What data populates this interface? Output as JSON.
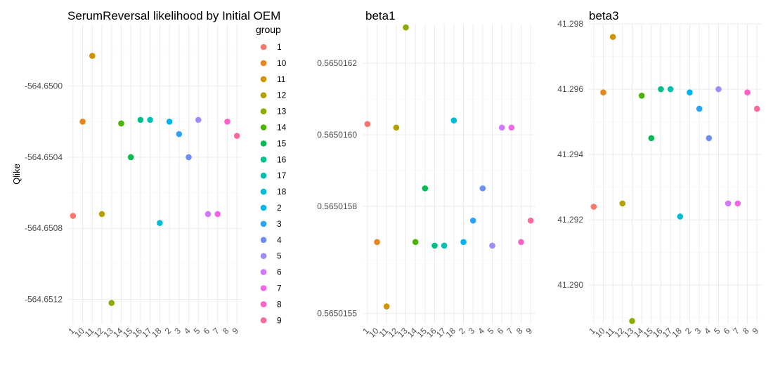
{
  "chart_data": [
    {
      "type": "scatter",
      "title": "SerumReversal likelihood by Initial OEM",
      "xlabel": "",
      "ylabel": "Qlike",
      "ylim": [
        -564.65134,
        -564.64965
      ],
      "yticks": [
        "-564.6500",
        "-564.6504",
        "-564.6508",
        "-564.6512"
      ],
      "ytick_values": [
        -564.65,
        -564.6504,
        -564.6508,
        -564.6512
      ],
      "categories": [
        "1",
        "10",
        "11",
        "12",
        "13",
        "14",
        "15",
        "16",
        "17",
        "18",
        "2",
        "3",
        "4",
        "5",
        "6",
        "7",
        "8",
        "9"
      ],
      "values": [
        -564.65073,
        -564.6502,
        -564.64983,
        -564.65072,
        -564.65122,
        -564.65021,
        -564.6504,
        -564.65019,
        -564.65019,
        -564.65077,
        -564.6502,
        -564.65027,
        -564.6504,
        -564.65019,
        -564.65072,
        -564.65072,
        -564.6502,
        -564.65028
      ],
      "grid": true
    },
    {
      "type": "scatter",
      "title": "beta1",
      "xlabel": "",
      "ylabel": "",
      "ylim": [
        0.56501547,
        0.56501631
      ],
      "yticks": [
        "0.5650162",
        "0.5650160",
        "0.5650158",
        "0.5650155"
      ],
      "ytick_values": [
        0.5650162,
        0.565016,
        0.5650158,
        0.5650155
      ],
      "categories": [
        "1",
        "10",
        "11",
        "12",
        "13",
        "14",
        "15",
        "16",
        "17",
        "18",
        "2",
        "3",
        "4",
        "5",
        "6",
        "7",
        "8",
        "9"
      ],
      "values": [
        0.56501603,
        0.5650157,
        0.56501552,
        0.56501602,
        0.5650163,
        0.5650157,
        0.56501585,
        0.56501569,
        0.56501569,
        0.56501604,
        0.5650157,
        0.56501576,
        0.56501585,
        0.56501569,
        0.56501602,
        0.56501602,
        0.5650157,
        0.56501576
      ],
      "grid": true
    },
    {
      "type": "scatter",
      "title": "beta3",
      "xlabel": "",
      "ylabel": "",
      "ylim": [
        41.2888,
        41.298
      ],
      "yticks": [
        "41.298",
        "41.296",
        "41.294",
        "41.292",
        "41.290"
      ],
      "ytick_values": [
        41.298,
        41.296,
        41.294,
        41.292,
        41.29
      ],
      "categories": [
        "1",
        "10",
        "11",
        "12",
        "13",
        "14",
        "15",
        "16",
        "17",
        "18",
        "2",
        "3",
        "4",
        "5",
        "6",
        "7",
        "8",
        "9"
      ],
      "values": [
        41.2924,
        41.2959,
        41.2976,
        41.2925,
        41.2889,
        41.2958,
        41.2945,
        41.296,
        41.296,
        41.2921,
        41.2959,
        41.2954,
        41.2945,
        41.296,
        41.2925,
        41.2925,
        41.2959,
        41.2954
      ],
      "grid": true
    }
  ],
  "legend": {
    "title": "group",
    "placement": "between first and second panel",
    "items": [
      {
        "label": "1",
        "color": "#F8766D"
      },
      {
        "label": "10",
        "color": "#E7851E"
      },
      {
        "label": "11",
        "color": "#D09400"
      },
      {
        "label": "12",
        "color": "#B2A100"
      },
      {
        "label": "13",
        "color": "#89AC00"
      },
      {
        "label": "14",
        "color": "#45B500"
      },
      {
        "label": "15",
        "color": "#00BC51"
      },
      {
        "label": "16",
        "color": "#00C087"
      },
      {
        "label": "17",
        "color": "#00C0B2"
      },
      {
        "label": "18",
        "color": "#00BCD6"
      },
      {
        "label": "2",
        "color": "#00B3F2"
      },
      {
        "label": "3",
        "color": "#29A3FF"
      },
      {
        "label": "4",
        "color": "#6B8FF9"
      },
      {
        "label": "5",
        "color": "#9C8DFF"
      },
      {
        "label": "6",
        "color": "#D277FF"
      },
      {
        "label": "7",
        "color": "#F166E8"
      },
      {
        "label": "8",
        "color": "#FF61C7"
      },
      {
        "label": "9",
        "color": "#FF689F"
      }
    ]
  },
  "colors": {
    "grid_major": "#ebebeb",
    "grid_minor": "#f5f5f5",
    "tick_text": "#4d4d4d"
  }
}
